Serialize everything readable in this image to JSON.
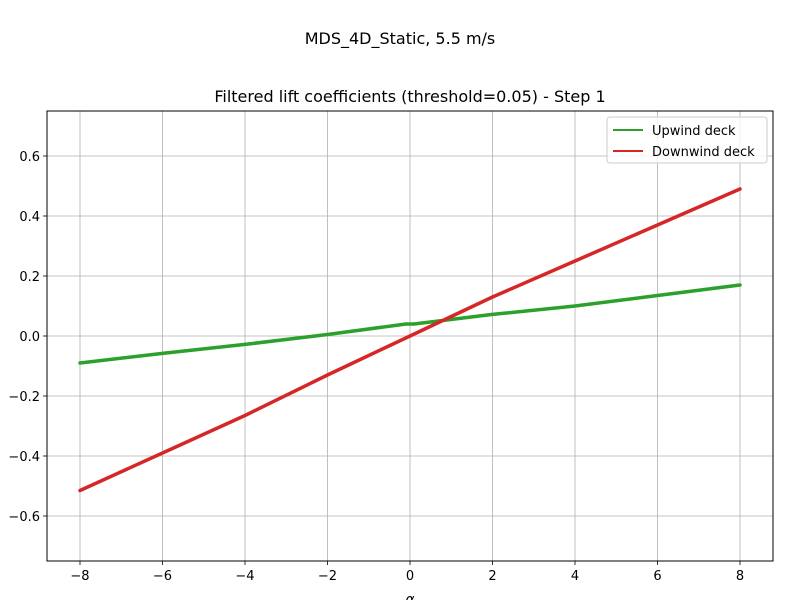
{
  "figure": {
    "suptitle": "MDS_4D_Static, 5.5 m/s"
  },
  "chart_data": {
    "type": "line",
    "title": "Filtered lift coefficients (threshold=0.05) - Step 1",
    "xlabel": "α",
    "ylabel": "",
    "xlim": [
      -8.8,
      8.8
    ],
    "ylim": [
      -0.75,
      0.75
    ],
    "xticks": [
      -8,
      -6,
      -4,
      -2,
      0,
      2,
      4,
      6,
      8
    ],
    "yticks": [
      -0.6,
      -0.4,
      -0.2,
      0.0,
      0.2,
      0.4,
      0.6
    ],
    "xtick_labels": [
      "−8",
      "−6",
      "−4",
      "−2",
      "0",
      "2",
      "4",
      "6",
      "8"
    ],
    "ytick_labels": [
      "−0.6",
      "−0.4",
      "−0.2",
      "0.0",
      "0.2",
      "0.4",
      "0.6"
    ],
    "grid": true,
    "legend_position": "top-right",
    "series": [
      {
        "name": "Upwind deck",
        "color": "#2ca02c",
        "points": [
          [
            -8,
            -0.09
          ],
          [
            -6,
            -0.058
          ],
          [
            -4,
            -0.028
          ],
          [
            -2,
            0.005
          ],
          [
            -0.1,
            0.04
          ],
          [
            0.1,
            0.04
          ],
          [
            2,
            0.072
          ],
          [
            4,
            0.1
          ],
          [
            6,
            0.135
          ],
          [
            8,
            0.17
          ]
        ]
      },
      {
        "name": "Downwind deck",
        "color": "#d62728",
        "points": [
          [
            -8,
            -0.515
          ],
          [
            -6,
            -0.39
          ],
          [
            -4,
            -0.265
          ],
          [
            -2,
            -0.13
          ],
          [
            0,
            0.0
          ],
          [
            2,
            0.13
          ],
          [
            4,
            0.25
          ],
          [
            6,
            0.37
          ],
          [
            8,
            0.49
          ]
        ]
      }
    ]
  }
}
